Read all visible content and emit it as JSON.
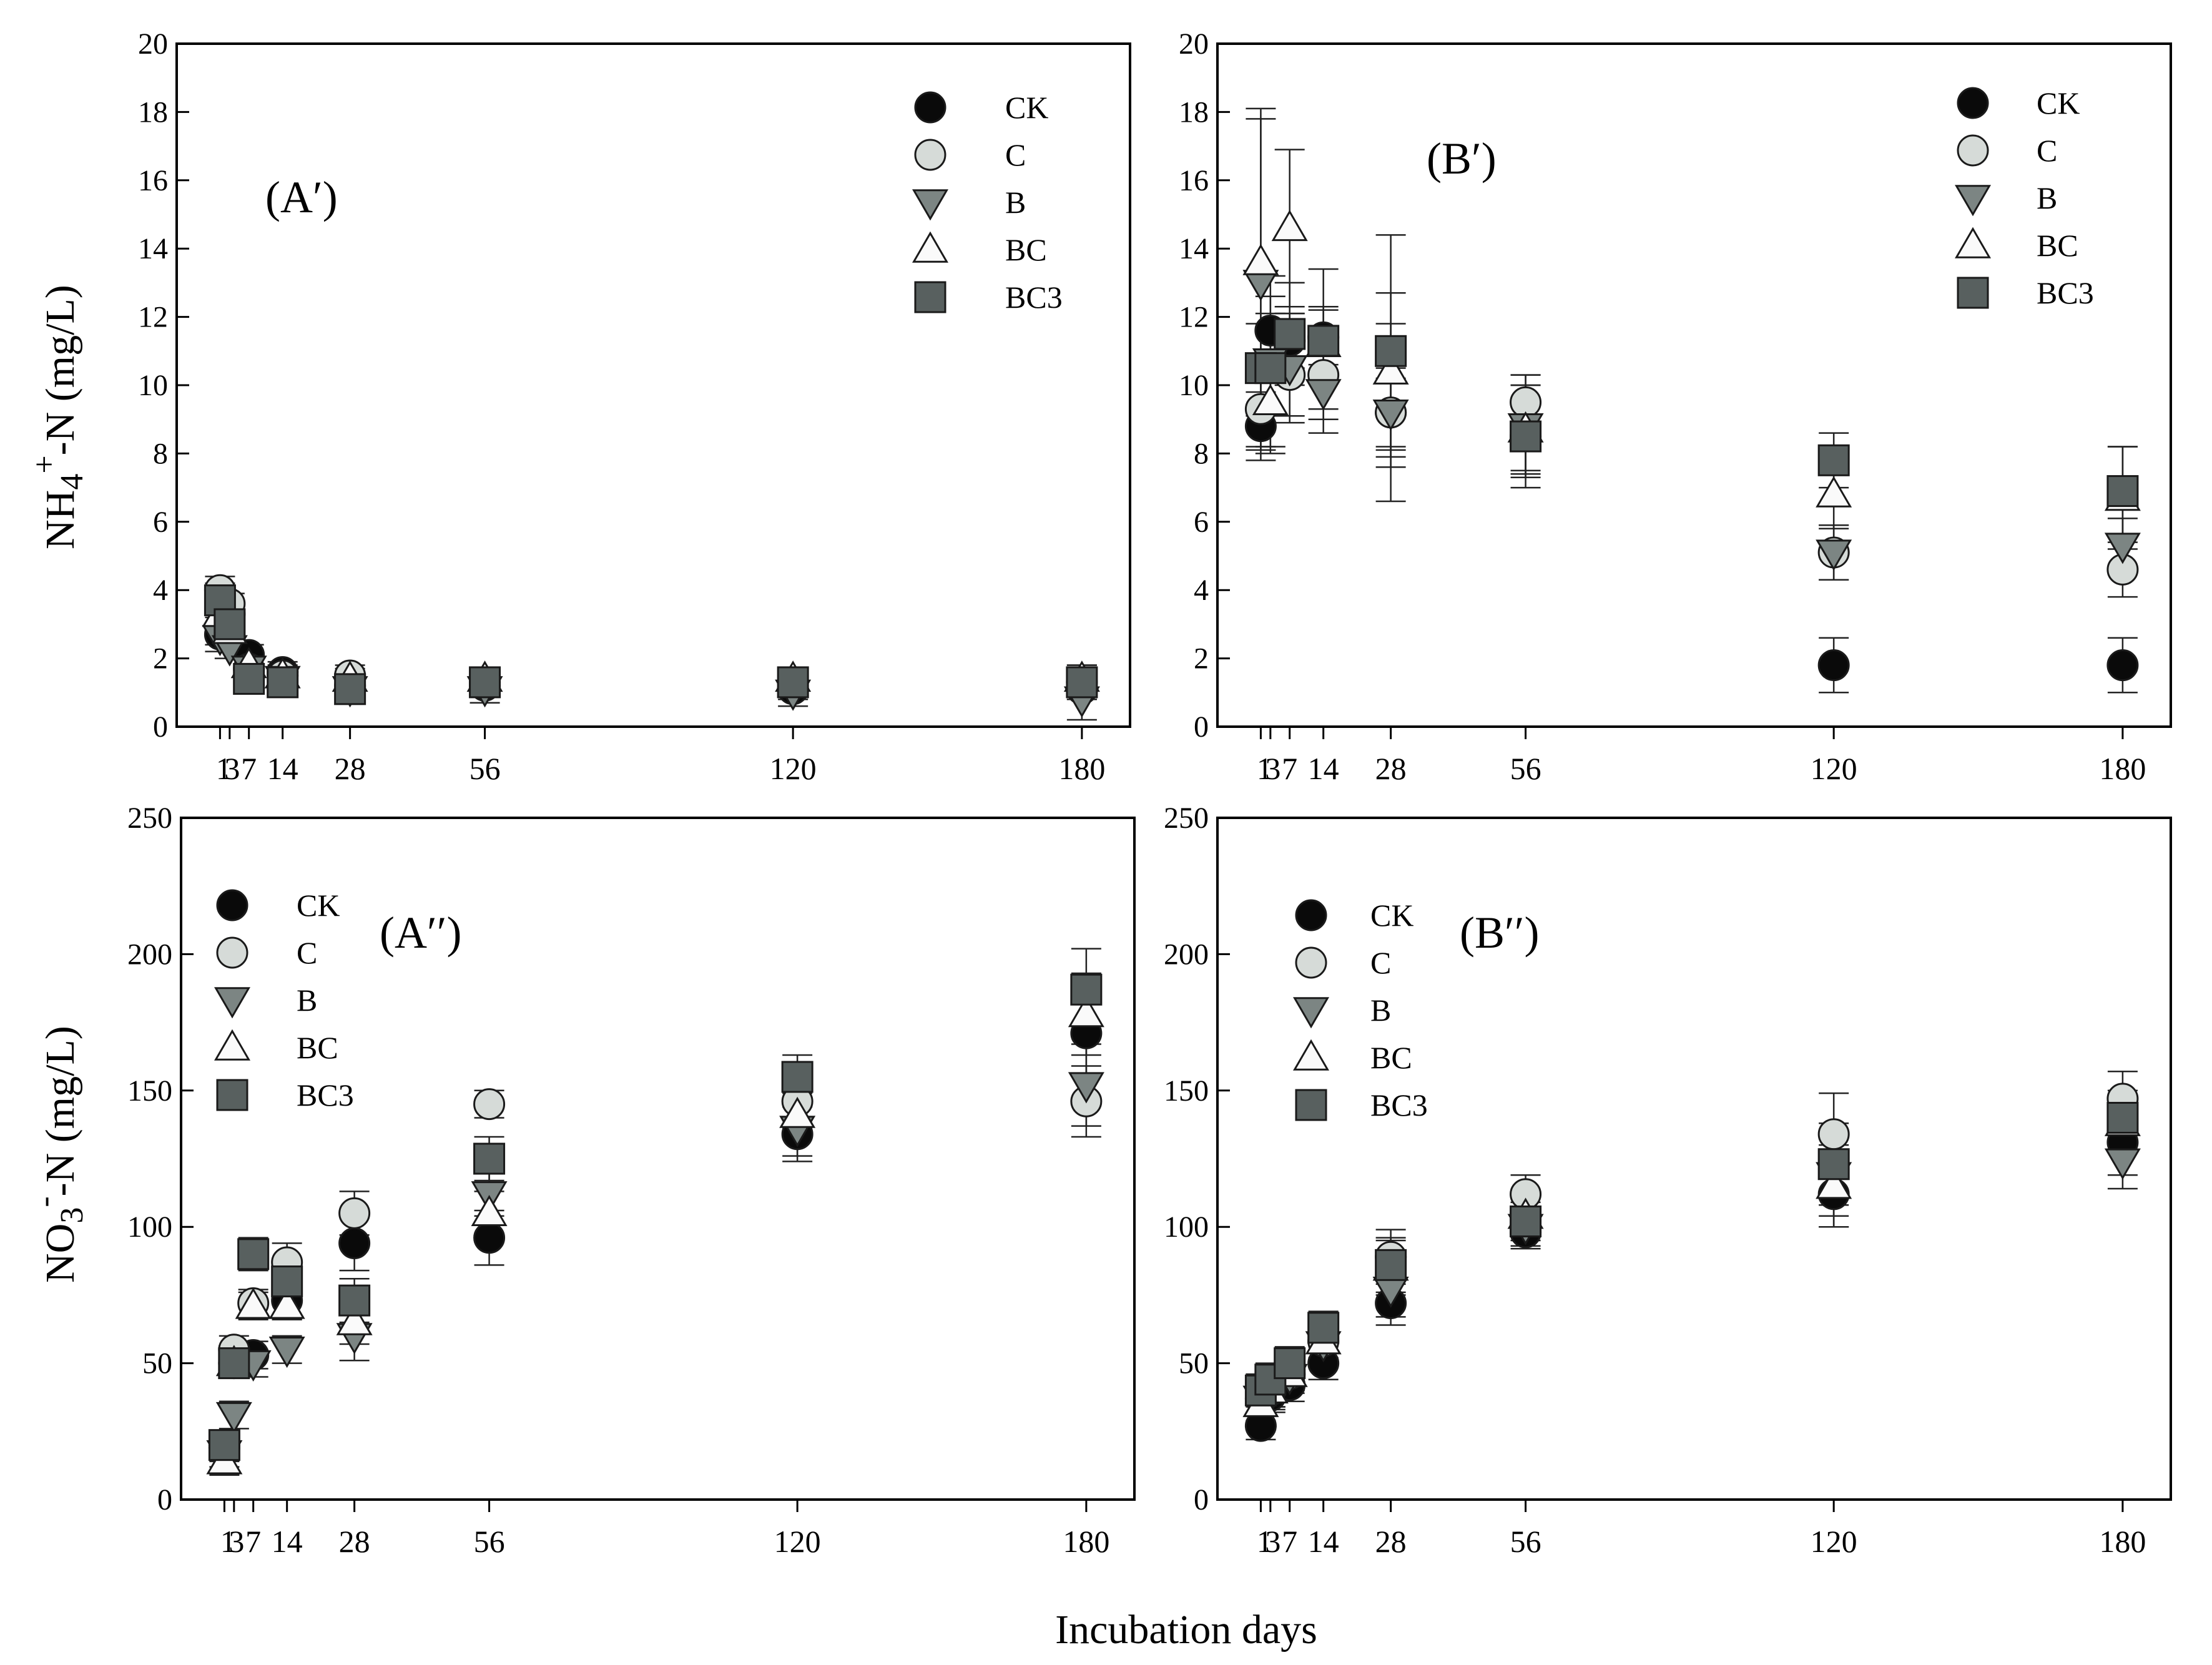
{
  "figure": {
    "x_axis_label": "Incubation days"
  },
  "series_styles": [
    {
      "key": "CK",
      "shape": "circle",
      "fill": "#0a0a0a"
    },
    {
      "key": "C",
      "shape": "circle",
      "fill": "#d6dbd8"
    },
    {
      "key": "B",
      "shape": "triangle-down",
      "fill": "#7c8583"
    },
    {
      "key": "BC",
      "shape": "triangle-up",
      "fill": "#fafafa"
    },
    {
      "key": "BC3",
      "shape": "square",
      "fill": "#58605f"
    }
  ],
  "chart_data": [
    {
      "type": "scatter",
      "id": "A1",
      "panel_label": "(A′)",
      "ylabel_main": "NH",
      "ylabel_sub": "4",
      "ylabel_sup": "+",
      "ylabel_rest": "-N (mg/L)",
      "xlim": [
        -8,
        190
      ],
      "ylim": [
        0,
        20
      ],
      "yticks": [
        "0",
        "2",
        "4",
        "6",
        "8",
        "10",
        "12",
        "14",
        "16",
        "18",
        "20"
      ],
      "xticks": [
        "1",
        "3",
        "7",
        "14",
        "28",
        "56",
        "120",
        "180"
      ],
      "x": [
        1,
        3,
        7,
        14,
        28,
        56,
        120,
        180
      ],
      "legend": {
        "position": "top-right",
        "labels": [
          "CK",
          "C",
          "B",
          "BC",
          "BC3"
        ]
      },
      "series": [
        {
          "name": "CK",
          "values": [
            2.7,
            3.3,
            2.1,
            1.6,
            1.2,
            1.2,
            1.1,
            1.1
          ],
          "errors": [
            0.3,
            0.3,
            0.3,
            0.3,
            0.2,
            0.3,
            0.3,
            0.3
          ]
        },
        {
          "name": "C",
          "values": [
            4.0,
            3.6,
            1.7,
            1.5,
            1.5,
            1.3,
            1.3,
            1.3
          ],
          "errors": [
            0.4,
            0.3,
            0.3,
            0.3,
            0.3,
            0.3,
            0.3,
            0.3
          ]
        },
        {
          "name": "B",
          "values": [
            2.6,
            2.3,
            1.7,
            1.4,
            1.1,
            1.1,
            1.0,
            0.8
          ],
          "errors": [
            0.4,
            0.3,
            0.3,
            0.3,
            0.3,
            0.4,
            0.4,
            0.6
          ]
        },
        {
          "name": "BC",
          "values": [
            3.3,
            2.8,
            1.8,
            1.5,
            1.4,
            1.4,
            1.4,
            1.4
          ],
          "errors": [
            0.4,
            0.3,
            0.3,
            0.3,
            0.3,
            0.3,
            0.3,
            0.4
          ]
        },
        {
          "name": "BC3",
          "values": [
            3.7,
            3.0,
            1.4,
            1.3,
            1.1,
            1.3,
            1.3,
            1.3
          ],
          "errors": [
            0.5,
            0.4,
            0.3,
            0.3,
            0.3,
            0.3,
            0.4,
            0.5
          ]
        }
      ]
    },
    {
      "type": "scatter",
      "id": "B1",
      "panel_label": "(B′)",
      "xlim": [
        -8,
        190
      ],
      "ylim": [
        0,
        20
      ],
      "yticks": [
        "0",
        "2",
        "4",
        "6",
        "8",
        "10",
        "12",
        "14",
        "16",
        "18",
        "20"
      ],
      "xticks": [
        "1",
        "3",
        "7",
        "14",
        "28",
        "56",
        "120",
        "180"
      ],
      "x": [
        1,
        3,
        7,
        14,
        28,
        56,
        120,
        180
      ],
      "legend": {
        "position": "top-right",
        "labels": [
          "CK",
          "C",
          "B",
          "BC",
          "BC3"
        ]
      },
      "series": [
        {
          "name": "CK",
          "values": [
            8.8,
            11.6,
            11.3,
            11.4,
            9.2,
            8.5,
            1.8,
            1.8
          ],
          "errors": [
            1.0,
            1.0,
            0.8,
            0.8,
            1.0,
            1.0,
            0.8,
            0.8
          ]
        },
        {
          "name": "C",
          "values": [
            9.3,
            10.6,
            10.3,
            10.3,
            9.2,
            9.5,
            5.1,
            4.6
          ],
          "errors": [
            1.2,
            1.5,
            1.2,
            1.0,
            1.3,
            0.8,
            0.8,
            0.8
          ]
        },
        {
          "name": "B",
          "values": [
            13.0,
            10.7,
            10.5,
            9.8,
            9.2,
            8.8,
            5.1,
            5.3
          ],
          "errors": [
            4.8,
            2.5,
            1.6,
            1.2,
            2.6,
            1.5,
            0.8,
            0.8
          ]
        },
        {
          "name": "BC",
          "values": [
            13.6,
            9.5,
            14.6,
            11.2,
            10.4,
            8.7,
            6.8,
            6.7
          ],
          "errors": [
            4.5,
            1.5,
            2.3,
            2.2,
            2.3,
            1.3,
            1.0,
            1.5
          ]
        },
        {
          "name": "BC3",
          "values": [
            10.5,
            10.5,
            11.5,
            11.3,
            11.0,
            8.5,
            7.8,
            6.9
          ],
          "errors": [
            1.3,
            1.3,
            1.5,
            1.0,
            3.4,
            1.5,
            0.8,
            1.3
          ]
        }
      ]
    },
    {
      "type": "scatter",
      "id": "A2",
      "panel_label": "(A′′)",
      "ylabel_main": "NO",
      "ylabel_sub": "3",
      "ylabel_sup": "-",
      "ylabel_rest": "-N (mg/L)",
      "xlim": [
        -8,
        190
      ],
      "ylim": [
        0,
        250
      ],
      "yticks": [
        "0",
        "50",
        "100",
        "150",
        "200",
        "250"
      ],
      "xticks": [
        "1",
        "3",
        "7",
        "14",
        "28",
        "56",
        "120",
        "180"
      ],
      "x": [
        1,
        3,
        7,
        14,
        28,
        56,
        120,
        180
      ],
      "legend": {
        "position": "top-left",
        "labels": [
          "CK",
          "C",
          "B",
          "BC",
          "BC3"
        ]
      },
      "series": [
        {
          "name": "CK",
          "values": [
            20,
            50,
            53,
            73,
            94,
            96,
            134,
            171
          ],
          "errors": [
            5,
            5,
            5,
            7,
            10,
            10,
            10,
            15
          ]
        },
        {
          "name": "C",
          "values": [
            19,
            55,
            72,
            87,
            105,
            145,
            146,
            146
          ],
          "errors": [
            5,
            5,
            5,
            7,
            8,
            5,
            10,
            13
          ]
        },
        {
          "name": "B",
          "values": [
            17,
            31,
            50,
            55,
            60,
            112,
            136,
            152
          ],
          "errors": [
            5,
            5,
            5,
            5,
            9,
            8,
            10,
            15
          ]
        },
        {
          "name": "BC",
          "values": [
            14,
            50,
            71,
            71,
            65,
            105,
            141,
            178
          ],
          "errors": [
            5,
            5,
            5,
            5,
            8,
            8,
            8,
            15
          ]
        },
        {
          "name": "BC3",
          "values": [
            20,
            50,
            90,
            80,
            73,
            125,
            155,
            187
          ],
          "errors": [
            5,
            5,
            6,
            7,
            8,
            8,
            8,
            15
          ]
        }
      ]
    },
    {
      "type": "scatter",
      "id": "B2",
      "panel_label": "(B′′)",
      "xlim": [
        -8,
        190
      ],
      "ylim": [
        0,
        250
      ],
      "yticks": [
        "0",
        "50",
        "100",
        "150",
        "200",
        "250"
      ],
      "xticks": [
        "1",
        "3",
        "7",
        "14",
        "28",
        "56",
        "120",
        "180"
      ],
      "x": [
        1,
        3,
        7,
        14,
        28,
        56,
        120,
        180
      ],
      "legend": {
        "position": "top-left",
        "labels": [
          "CK",
          "C",
          "B",
          "BC",
          "BC3"
        ]
      },
      "series": [
        {
          "name": "CK",
          "values": [
            27,
            38,
            42,
            50,
            72,
            98,
            112,
            131
          ],
          "errors": [
            5,
            5,
            6,
            6,
            8,
            6,
            12,
            12
          ]
        },
        {
          "name": "C",
          "values": [
            37,
            40,
            46,
            58,
            89,
            112,
            134,
            147
          ],
          "errors": [
            6,
            6,
            6,
            6,
            10,
            7,
            15,
            10
          ]
        },
        {
          "name": "B",
          "values": [
            37,
            38,
            45,
            57,
            77,
            100,
            119,
            124
          ],
          "errors": [
            6,
            6,
            6,
            6,
            10,
            7,
            15,
            10
          ]
        },
        {
          "name": "BC",
          "values": [
            35,
            40,
            46,
            58,
            85,
            104,
            115,
            138
          ],
          "errors": [
            6,
            6,
            6,
            6,
            10,
            7,
            15,
            10
          ]
        },
        {
          "name": "BC3",
          "values": [
            40,
            44,
            50,
            63,
            86,
            102,
            123,
            140
          ],
          "errors": [
            6,
            6,
            6,
            6,
            10,
            7,
            15,
            10
          ]
        }
      ]
    }
  ]
}
